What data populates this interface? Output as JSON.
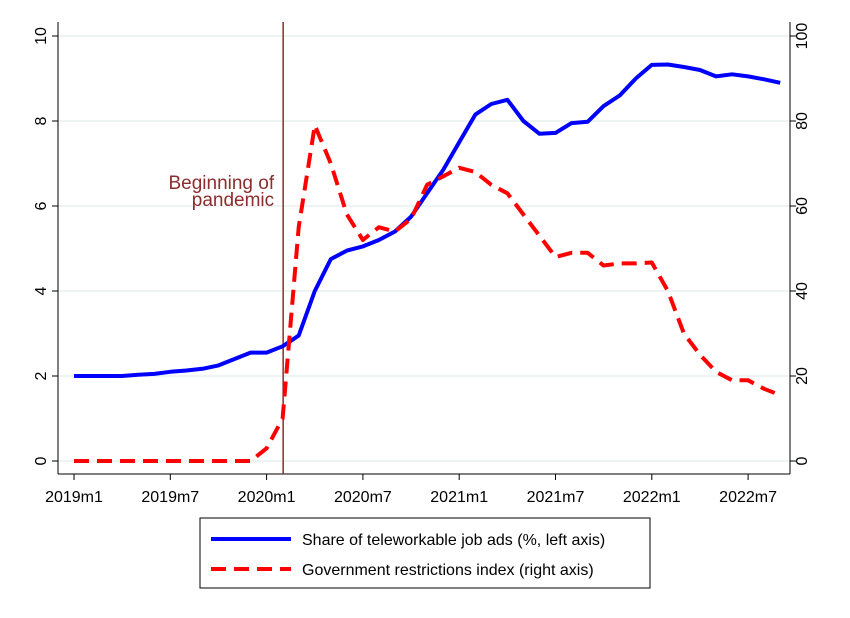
{
  "chart_data": {
    "type": "line",
    "x_tick_labels": [
      "2019m1",
      "2019m7",
      "2020m1",
      "2020m7",
      "2021m1",
      "2021m7",
      "2022m1",
      "2022m7"
    ],
    "left_axis": {
      "ylim": [
        0,
        10
      ],
      "ticks": [
        "0",
        "2",
        "4",
        "6",
        "8",
        "10"
      ]
    },
    "right_axis": {
      "ylim": [
        0,
        100
      ],
      "ticks": [
        "0",
        "20",
        "40",
        "60",
        "80",
        "100"
      ]
    },
    "grid": "horizontal",
    "legend_position": "bottom",
    "series": [
      {
        "name": "Share of teleworkable job ads (%, left axis)",
        "axis": "left",
        "color": "#0000ff",
        "style": "solid",
        "x": [
          "2019m1",
          "2019m2",
          "2019m3",
          "2019m4",
          "2019m5",
          "2019m6",
          "2019m7",
          "2019m8",
          "2019m9",
          "2019m10",
          "2019m11",
          "2019m12",
          "2020m1",
          "2020m2",
          "2020m3",
          "2020m4",
          "2020m5",
          "2020m6",
          "2020m7",
          "2020m8",
          "2020m9",
          "2020m10",
          "2020m11",
          "2020m12",
          "2021m1",
          "2021m2",
          "2021m3",
          "2021m4",
          "2021m5",
          "2021m6",
          "2021m7",
          "2021m8",
          "2021m9",
          "2021m10",
          "2021m11",
          "2021m12",
          "2022m1",
          "2022m2",
          "2022m3",
          "2022m4",
          "2022m5",
          "2022m6",
          "2022m7",
          "2022m8",
          "2022m9"
        ],
        "values": [
          2.0,
          2.0,
          2.0,
          2.0,
          2.03,
          2.05,
          2.1,
          2.13,
          2.17,
          2.25,
          2.4,
          2.55,
          2.55,
          2.7,
          2.95,
          4.0,
          4.75,
          4.95,
          5.05,
          5.2,
          5.4,
          5.75,
          6.3,
          6.85,
          7.5,
          8.15,
          8.4,
          8.5,
          8.0,
          7.7,
          7.72,
          7.95,
          7.98,
          8.35,
          8.6,
          9.0,
          9.32,
          9.33,
          9.27,
          9.2,
          9.05,
          9.1,
          9.05,
          8.98,
          8.9
        ]
      },
      {
        "name": "Government restrictions index (right axis)",
        "axis": "right",
        "color": "#ff0000",
        "style": "dashed",
        "x": [
          "2019m1",
          "2019m2",
          "2019m3",
          "2019m4",
          "2019m5",
          "2019m6",
          "2019m7",
          "2019m8",
          "2019m9",
          "2019m10",
          "2019m11",
          "2019m12",
          "2020m1",
          "2020m2",
          "2020m3",
          "2020m4",
          "2020m5",
          "2020m6",
          "2020m7",
          "2020m8",
          "2020m9",
          "2020m10",
          "2020m11",
          "2020m12",
          "2021m1",
          "2021m2",
          "2021m3",
          "2021m4",
          "2021m5",
          "2021m6",
          "2021m7",
          "2021m8",
          "2021m9",
          "2021m10",
          "2021m11",
          "2021m12",
          "2022m1",
          "2022m2",
          "2022m3",
          "2022m4",
          "2022m5",
          "2022m6",
          "2022m7",
          "2022m8",
          "2022m9"
        ],
        "values": [
          0,
          0,
          0,
          0,
          0,
          0,
          0,
          0,
          0,
          0,
          0,
          0,
          3,
          10,
          55,
          79,
          70,
          58,
          52,
          55,
          54,
          57,
          65,
          67,
          69,
          68,
          65,
          63,
          58,
          53,
          48,
          49,
          49,
          46,
          46.5,
          46.5,
          46.7,
          40,
          30,
          25,
          21,
          19,
          19,
          17,
          15.5
        ]
      }
    ],
    "annotations": [
      {
        "text_line1": "Beginning of",
        "text_line2": "pandemic",
        "at_x": "2020m2",
        "color": "#8b2d2d"
      }
    ]
  }
}
